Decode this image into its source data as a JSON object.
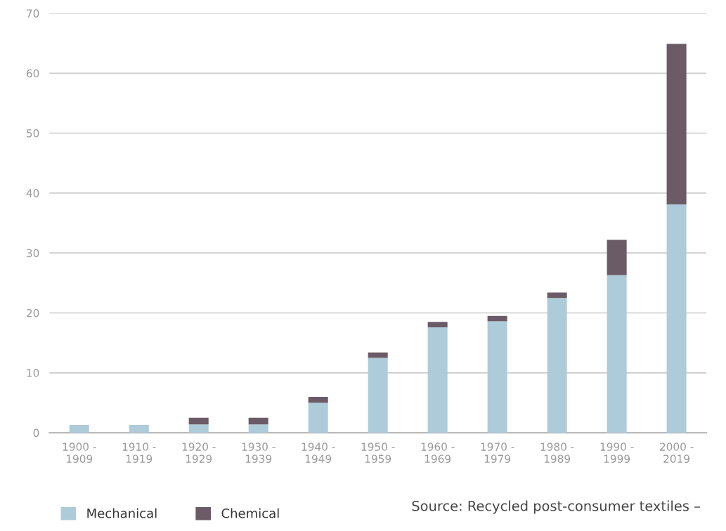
{
  "chart_data": {
    "type": "bar",
    "stacked": true,
    "categories": [
      "1900 -\n1909",
      "1910 -\n1919",
      "1920 -\n1929",
      "1930 -\n1939",
      "1940 -\n1949",
      "1950 -\n1959",
      "1960 -\n1969",
      "1970 -\n1979",
      "1980 -\n1989",
      "1990 -\n1999",
      "2000 -\n2019"
    ],
    "series": [
      {
        "name": "Mechanical",
        "color": "#aecbd9",
        "values": [
          1.3,
          1.3,
          1.4,
          1.4,
          5.0,
          12.5,
          17.6,
          18.6,
          22.5,
          26.3,
          38.1
        ]
      },
      {
        "name": "Chemical",
        "color": "#6b5b66",
        "values": [
          null,
          null,
          1.1,
          1.1,
          1.0,
          0.9,
          0.9,
          0.9,
          0.9,
          5.9,
          26.8
        ]
      }
    ],
    "ylim": [
      0,
      70
    ],
    "yticks": [
      0,
      10,
      20,
      30,
      40,
      50,
      60,
      70
    ],
    "grid": "y",
    "legend": "bottom left",
    "annotations": [
      "Source: Recycled post-consumer textiles –"
    ]
  }
}
